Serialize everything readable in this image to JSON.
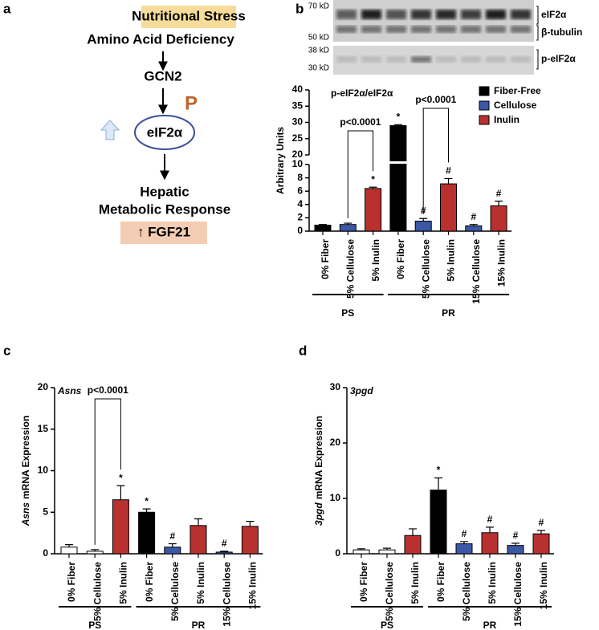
{
  "panel_a": {
    "label": "a",
    "steps": [
      "Nutritional Stress",
      "Amino Acid Deficiency",
      "GCN2",
      "eIF2α",
      "Hepatic",
      "Metabolic Response",
      "↑ FGF21"
    ],
    "phospho": "P"
  },
  "panel_b": {
    "label": "b",
    "blot": {
      "markers": [
        "70 kD",
        "50 kD",
        "38 kD",
        "30 kD"
      ],
      "bands": [
        "eIF2α",
        "β-tubulin",
        "p-eIF2α"
      ]
    }
  },
  "panel_c": {
    "label": "c"
  },
  "panel_d": {
    "label": "d"
  },
  "chart_data": [
    {
      "type": "bar",
      "title": "p-eIF2α/eIF2α",
      "ylabel": "Arbitrary Units",
      "categories": [
        "0% Fiber",
        "5% Cellulose",
        "5% Inulin",
        "0% Fiber",
        "5% Cellulose",
        "5% Inulin",
        "15% Cellulose",
        "15% Inulin"
      ],
      "values": [
        0.9,
        1.0,
        6.4,
        29,
        1.5,
        7.1,
        0.8,
        3.8
      ],
      "errors": [
        0.1,
        0.2,
        0.2,
        0.3,
        0.4,
        0.8,
        0.2,
        0.7
      ],
      "colors": [
        "#000000",
        "#3b57a6",
        "#b8312f",
        "#000000",
        "#3b57a6",
        "#b8312f",
        "#3b57a6",
        "#b8312f"
      ],
      "markers": [
        null,
        null,
        "*",
        "*",
        "#",
        "#",
        "#",
        "#"
      ],
      "segments": [
        {
          "ylim": [
            0,
            10
          ],
          "yticks": [
            0,
            2,
            4,
            6,
            8,
            10
          ]
        },
        {
          "ylim": [
            20,
            40
          ],
          "yticks": [
            20,
            25,
            30,
            35,
            40
          ]
        }
      ],
      "brackets": [
        {
          "bars": [
            1,
            2
          ],
          "label": "p<0.0001"
        },
        {
          "bars": [
            4,
            5
          ],
          "label": "p<0.0001"
        }
      ],
      "groups": [
        {
          "name": "PS",
          "size": 3
        },
        {
          "name": "PR",
          "size": 5
        }
      ],
      "legend": [
        {
          "name": "Fiber-Free",
          "color": "#000000"
        },
        {
          "name": "Cellulose",
          "color": "#3b57a6"
        },
        {
          "name": "Inulin",
          "color": "#b8312f"
        }
      ]
    },
    {
      "type": "bar",
      "title": "Asns",
      "ylabel": "mRNA Expression",
      "categories": [
        "0% Fiber",
        "5% Cellulose",
        "5% Inulin",
        "0% Fiber",
        "5% Cellulose",
        "5% Inulin",
        "15% Cellulose",
        "15% Inulin"
      ],
      "values": [
        0.8,
        0.3,
        6.5,
        5.0,
        0.8,
        3.4,
        0.2,
        3.3
      ],
      "errors": [
        0.3,
        0.2,
        1.7,
        0.4,
        0.4,
        0.8,
        0.1,
        0.6
      ],
      "colors": [
        "#ffffff",
        "#ffffff",
        "#b8312f",
        "#000000",
        "#3b57a6",
        "#b8312f",
        "#3b57a6",
        "#b8312f"
      ],
      "markers": [
        null,
        null,
        "*",
        "*",
        "#",
        null,
        "#",
        null
      ],
      "segments": [
        {
          "ylim": [
            0,
            20
          ],
          "yticks": [
            0,
            5,
            10,
            15,
            20
          ]
        }
      ],
      "brackets": [
        {
          "bars": [
            1,
            2
          ],
          "label": "p<0.0001"
        }
      ],
      "groups": [
        {
          "name": "PS",
          "size": 3
        },
        {
          "name": "PR",
          "size": 5
        }
      ]
    },
    {
      "type": "bar",
      "title": "3pgd",
      "ylabel": "mRNA Expression",
      "categories": [
        "0% Fiber",
        "5% Cellulose",
        "5% Inulin",
        "0% Fiber",
        "5% Cellulose",
        "5% Inulin",
        "15% Cellulose",
        "15% Inulin"
      ],
      "values": [
        0.7,
        0.7,
        3.3,
        11.5,
        1.8,
        3.8,
        1.5,
        3.6
      ],
      "errors": [
        0.2,
        0.3,
        1.2,
        2.2,
        0.4,
        1.0,
        0.4,
        0.6
      ],
      "colors": [
        "#ffffff",
        "#ffffff",
        "#b8312f",
        "#000000",
        "#3b57a6",
        "#b8312f",
        "#3b57a6",
        "#b8312f"
      ],
      "markers": [
        null,
        null,
        null,
        "*",
        "#",
        "#",
        "#",
        "#"
      ],
      "segments": [
        {
          "ylim": [
            0,
            30
          ],
          "yticks": [
            0,
            10,
            20,
            30
          ]
        }
      ],
      "groups": [
        {
          "name": "PS",
          "size": 3
        },
        {
          "name": "PR",
          "size": 5
        }
      ]
    }
  ]
}
